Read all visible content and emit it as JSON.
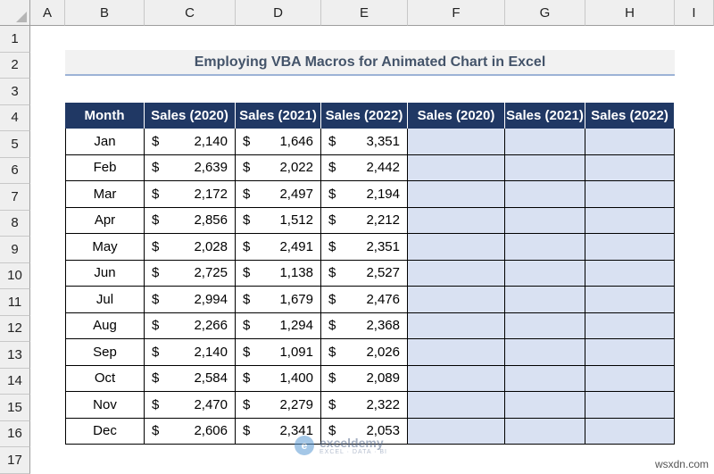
{
  "columns": [
    "A",
    "B",
    "C",
    "D",
    "E",
    "F",
    "G",
    "H",
    "I"
  ],
  "rows": [
    "1",
    "2",
    "3",
    "4",
    "5",
    "6",
    "7",
    "8",
    "9",
    "10",
    "11",
    "12",
    "13",
    "14",
    "15",
    "16",
    "17"
  ],
  "title": "Employing VBA Macros for Animated Chart in Excel",
  "headers": [
    "Month",
    "Sales (2020)",
    "Sales (2021)",
    "Sales (2022)",
    "Sales (2020)",
    "Sales (2021)",
    "Sales (2022)"
  ],
  "currency_symbol": "$",
  "data": [
    {
      "month": "Jan",
      "s2020": "2,140",
      "s2021": "1,646",
      "s2022": "3,351"
    },
    {
      "month": "Feb",
      "s2020": "2,639",
      "s2021": "2,022",
      "s2022": "2,442"
    },
    {
      "month": "Mar",
      "s2020": "2,172",
      "s2021": "2,497",
      "s2022": "2,194"
    },
    {
      "month": "Apr",
      "s2020": "2,856",
      "s2021": "1,512",
      "s2022": "2,212"
    },
    {
      "month": "May",
      "s2020": "2,028",
      "s2021": "2,491",
      "s2022": "2,351"
    },
    {
      "month": "Jun",
      "s2020": "2,725",
      "s2021": "1,138",
      "s2022": "2,527"
    },
    {
      "month": "Jul",
      "s2020": "2,994",
      "s2021": "1,679",
      "s2022": "2,476"
    },
    {
      "month": "Aug",
      "s2020": "2,266",
      "s2021": "1,294",
      "s2022": "2,368"
    },
    {
      "month": "Sep",
      "s2020": "2,140",
      "s2021": "1,091",
      "s2022": "2,026"
    },
    {
      "month": "Oct",
      "s2020": "2,584",
      "s2021": "1,400",
      "s2022": "2,089"
    },
    {
      "month": "Nov",
      "s2020": "2,470",
      "s2021": "2,279",
      "s2022": "2,322"
    },
    {
      "month": "Dec",
      "s2020": "2,606",
      "s2021": "2,341",
      "s2022": "2,053"
    }
  ],
  "watermark": {
    "name": "exceldemy",
    "tagline": "EXCEL · DATA · BI"
  },
  "credit": "wsxdn.com",
  "colors": {
    "header_bg": "#203864",
    "empty_fill": "#d9e1f2",
    "title_text": "#44546a"
  }
}
